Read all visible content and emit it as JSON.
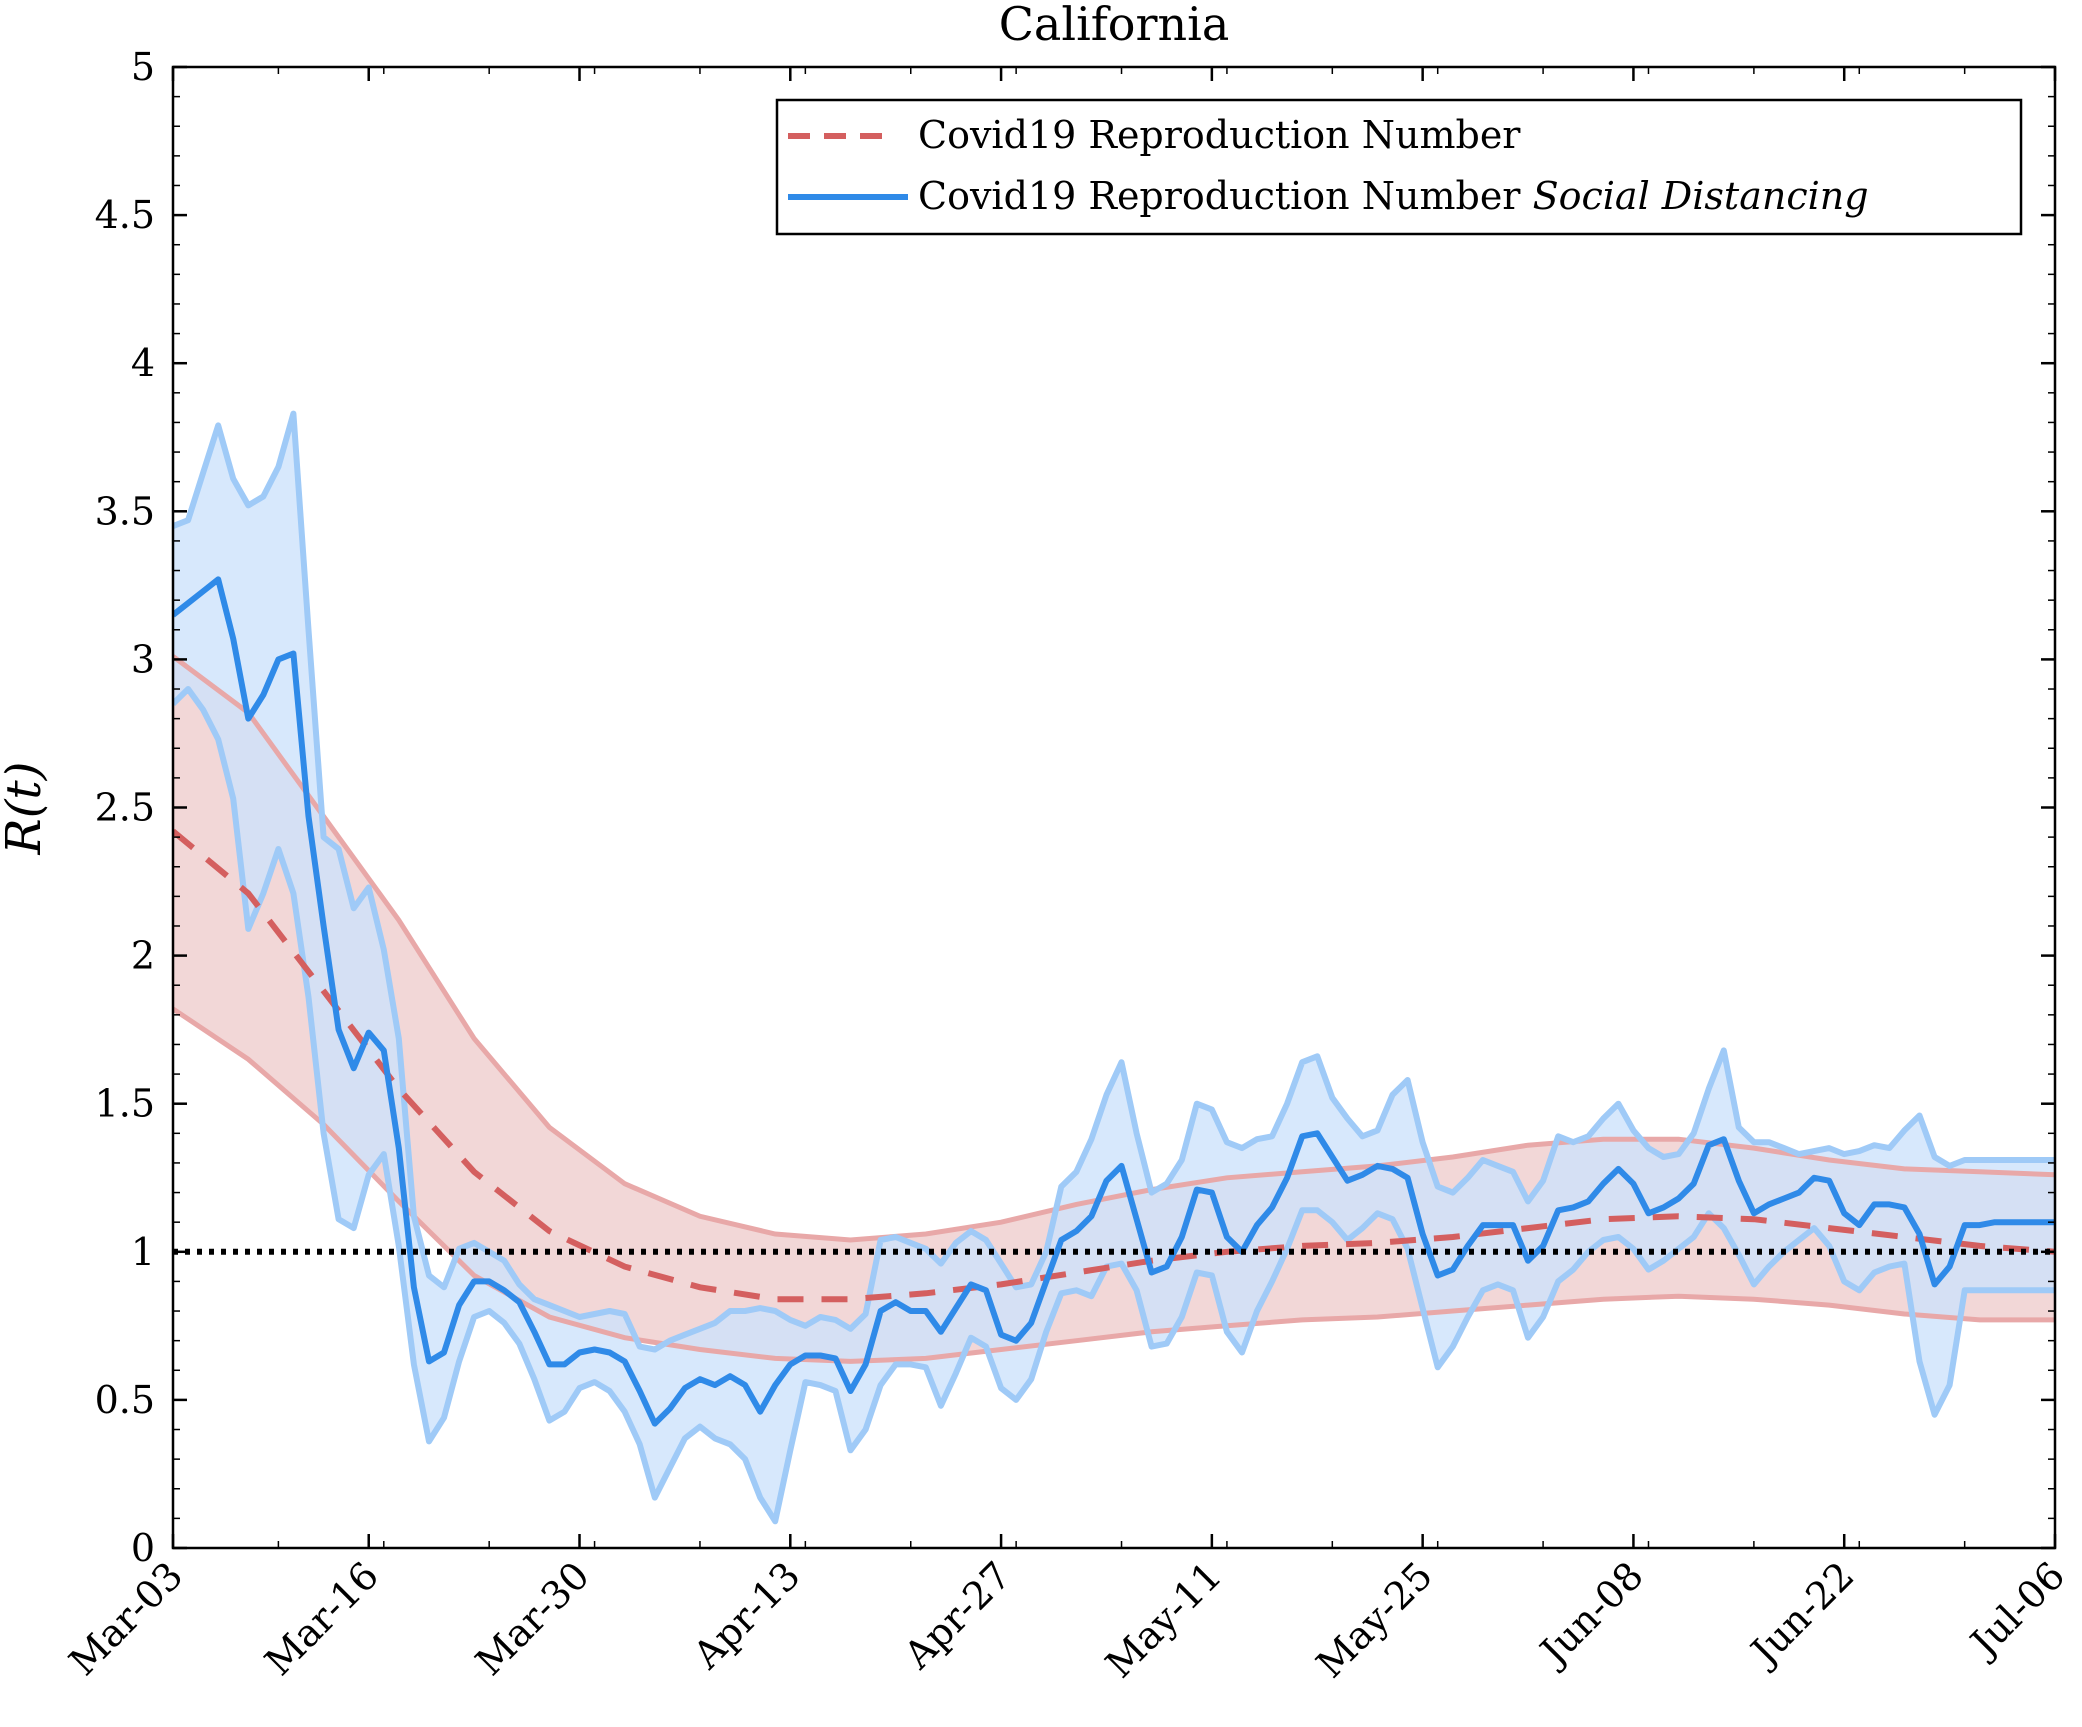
{
  "chart_data": {
    "type": "line",
    "title": "California",
    "xlabel": "",
    "ylabel": "R(t)",
    "ylim": [
      0,
      5
    ],
    "yticks": [
      {
        "v": 0,
        "label": "0"
      },
      {
        "v": 0.5,
        "label": "0.5"
      },
      {
        "v": 1,
        "label": "1"
      },
      {
        "v": 1.5,
        "label": "1.5"
      },
      {
        "v": 2,
        "label": "2"
      },
      {
        "v": 2.5,
        "label": "2.5"
      },
      {
        "v": 3,
        "label": "3"
      },
      {
        "v": 3.5,
        "label": "3.5"
      },
      {
        "v": 4,
        "label": "4"
      },
      {
        "v": 4.5,
        "label": "4.5"
      },
      {
        "v": 5,
        "label": "5"
      }
    ],
    "xlim_days": [
      0,
      125
    ],
    "xticks": [
      {
        "day": 0,
        "label": "Mar-03"
      },
      {
        "day": 13,
        "label": "Mar-16"
      },
      {
        "day": 27,
        "label": "Mar-30"
      },
      {
        "day": 41,
        "label": "Apr-13"
      },
      {
        "day": 55,
        "label": "Apr-27"
      },
      {
        "day": 69,
        "label": "May-11"
      },
      {
        "day": 83,
        "label": "May-25"
      },
      {
        "day": 97,
        "label": "Jun-08"
      },
      {
        "day": 111,
        "label": "Jun-22"
      },
      {
        "day": 125,
        "label": "Jul-06"
      }
    ],
    "reference_line": {
      "y": 1,
      "style": "dotted",
      "color": "#000000"
    },
    "legend": {
      "position": "top-right",
      "entries": [
        {
          "label": "Covid19 Reproduction Number",
          "italic": "",
          "style": "dashed",
          "color": "#d45f5f"
        },
        {
          "label": "Covid19 Reproduction Number ",
          "italic": "Social Distancing",
          "style": "solid",
          "color": "#2f8ae8"
        }
      ]
    },
    "series": [
      {
        "name": "Covid19 Reproduction Number",
        "color": "#d45f5f",
        "band_color": "#eec9c9",
        "days": [
          0,
          5,
          10,
          15,
          20,
          25,
          30,
          35,
          40,
          45,
          50,
          55,
          60,
          65,
          70,
          75,
          80,
          85,
          90,
          95,
          100,
          105,
          110,
          115,
          120,
          125
        ],
        "mean": [
          2.42,
          2.21,
          1.88,
          1.55,
          1.27,
          1.07,
          0.95,
          0.88,
          0.84,
          0.84,
          0.86,
          0.89,
          0.93,
          0.97,
          1.0,
          1.02,
          1.03,
          1.05,
          1.08,
          1.11,
          1.12,
          1.11,
          1.08,
          1.05,
          1.02,
          1.0
        ],
        "upper": [
          3.01,
          2.82,
          2.47,
          2.12,
          1.72,
          1.42,
          1.23,
          1.12,
          1.06,
          1.04,
          1.06,
          1.1,
          1.16,
          1.21,
          1.25,
          1.27,
          1.29,
          1.32,
          1.36,
          1.38,
          1.38,
          1.35,
          1.31,
          1.28,
          1.27,
          1.26
        ],
        "lower": [
          1.82,
          1.65,
          1.43,
          1.17,
          0.92,
          0.78,
          0.71,
          0.67,
          0.64,
          0.63,
          0.64,
          0.67,
          0.7,
          0.73,
          0.75,
          0.77,
          0.78,
          0.8,
          0.82,
          0.84,
          0.85,
          0.84,
          0.82,
          0.79,
          0.77,
          0.77
        ]
      },
      {
        "name": "Covid19 Reproduction Number Social Distancing",
        "color": "#2f8ae8",
        "band_color": "#cde2fb",
        "band_edge_color": "#9fcaf7",
        "days": [
          0,
          1,
          2,
          3,
          4,
          5,
          6,
          7,
          8,
          9,
          10,
          11,
          12,
          13,
          14,
          15,
          16,
          17,
          18,
          19,
          20,
          21,
          22,
          23,
          24,
          25,
          26,
          27,
          28,
          29,
          30,
          31,
          32,
          33,
          34,
          35,
          36,
          37,
          38,
          39,
          40,
          41,
          42,
          43,
          44,
          45,
          46,
          47,
          48,
          49,
          50,
          51,
          52,
          53,
          54,
          55,
          56,
          57,
          58,
          59,
          60,
          61,
          62,
          63,
          64,
          65,
          66,
          67,
          68,
          69,
          70,
          71,
          72,
          73,
          74,
          75,
          76,
          77,
          78,
          79,
          80,
          81,
          82,
          83,
          84,
          85,
          86,
          87,
          88,
          89,
          90,
          91,
          92,
          93,
          94,
          95,
          96,
          97,
          98,
          99,
          100,
          101,
          102,
          103,
          104,
          105,
          106,
          107,
          108,
          109,
          110,
          111,
          112,
          113,
          114,
          115,
          116,
          117,
          118,
          119,
          120,
          121,
          122,
          123,
          124,
          125
        ],
        "mean": [
          3.15,
          3.19,
          3.23,
          3.27,
          3.07,
          2.8,
          2.88,
          3.0,
          3.02,
          2.47,
          2.1,
          1.75,
          1.62,
          1.74,
          1.68,
          1.35,
          0.88,
          0.63,
          0.66,
          0.82,
          0.9,
          0.9,
          0.87,
          0.83,
          0.73,
          0.62,
          0.62,
          0.66,
          0.67,
          0.66,
          0.63,
          0.53,
          0.42,
          0.47,
          0.54,
          0.57,
          0.55,
          0.58,
          0.55,
          0.46,
          0.55,
          0.62,
          0.65,
          0.65,
          0.64,
          0.53,
          0.62,
          0.8,
          0.83,
          0.8,
          0.8,
          0.73,
          0.81,
          0.89,
          0.87,
          0.72,
          0.7,
          0.76,
          0.9,
          1.04,
          1.07,
          1.12,
          1.24,
          1.29,
          1.11,
          0.93,
          0.95,
          1.05,
          1.21,
          1.2,
          1.05,
          1.0,
          1.09,
          1.15,
          1.25,
          1.39,
          1.4,
          1.32,
          1.24,
          1.26,
          1.29,
          1.28,
          1.25,
          1.06,
          0.92,
          0.94,
          1.02,
          1.09,
          1.09,
          1.09,
          0.97,
          1.02,
          1.14,
          1.15,
          1.17,
          1.23,
          1.28,
          1.23,
          1.13,
          1.15,
          1.18,
          1.23,
          1.36,
          1.38,
          1.24,
          1.13,
          1.16,
          1.18,
          1.2,
          1.25,
          1.24,
          1.13,
          1.09,
          1.16,
          1.16,
          1.15,
          1.06,
          0.89,
          0.95,
          1.09,
          1.09,
          1.1,
          1.1,
          1.1,
          1.1,
          1.1
        ],
        "upper": [
          3.45,
          3.47,
          3.63,
          3.79,
          3.61,
          3.52,
          3.55,
          3.65,
          3.83,
          3.1,
          2.4,
          2.36,
          2.16,
          2.23,
          2.02,
          1.72,
          1.12,
          0.92,
          0.88,
          1.01,
          1.03,
          1.0,
          0.97,
          0.89,
          0.84,
          0.82,
          0.8,
          0.78,
          0.79,
          0.8,
          0.79,
          0.68,
          0.67,
          0.7,
          0.72,
          0.74,
          0.76,
          0.8,
          0.8,
          0.81,
          0.8,
          0.77,
          0.75,
          0.78,
          0.77,
          0.74,
          0.79,
          1.04,
          1.05,
          1.03,
          1.01,
          0.96,
          1.03,
          1.07,
          1.04,
          0.96,
          0.88,
          0.89,
          1.0,
          1.22,
          1.27,
          1.38,
          1.53,
          1.64,
          1.4,
          1.2,
          1.23,
          1.31,
          1.5,
          1.48,
          1.37,
          1.35,
          1.38,
          1.39,
          1.5,
          1.64,
          1.66,
          1.52,
          1.45,
          1.39,
          1.41,
          1.53,
          1.58,
          1.37,
          1.22,
          1.2,
          1.25,
          1.31,
          1.29,
          1.27,
          1.17,
          1.24,
          1.39,
          1.37,
          1.39,
          1.45,
          1.5,
          1.41,
          1.35,
          1.32,
          1.33,
          1.4,
          1.55,
          1.68,
          1.42,
          1.37,
          1.37,
          1.35,
          1.33,
          1.34,
          1.35,
          1.33,
          1.34,
          1.36,
          1.35,
          1.41,
          1.46,
          1.32,
          1.29,
          1.31,
          1.31,
          1.31,
          1.31,
          1.31,
          1.31,
          1.31
        ],
        "lower": [
          2.85,
          2.9,
          2.83,
          2.73,
          2.53,
          2.09,
          2.21,
          2.36,
          2.21,
          1.86,
          1.4,
          1.11,
          1.08,
          1.26,
          1.33,
          1.02,
          0.62,
          0.36,
          0.44,
          0.63,
          0.78,
          0.8,
          0.76,
          0.69,
          0.57,
          0.43,
          0.46,
          0.54,
          0.56,
          0.53,
          0.46,
          0.35,
          0.17,
          0.27,
          0.37,
          0.41,
          0.37,
          0.35,
          0.3,
          0.17,
          0.09,
          0.33,
          0.56,
          0.55,
          0.53,
          0.33,
          0.4,
          0.55,
          0.62,
          0.62,
          0.61,
          0.48,
          0.59,
          0.71,
          0.68,
          0.54,
          0.5,
          0.57,
          0.73,
          0.86,
          0.87,
          0.85,
          0.95,
          0.96,
          0.87,
          0.68,
          0.69,
          0.78,
          0.93,
          0.92,
          0.73,
          0.66,
          0.8,
          0.9,
          1.01,
          1.14,
          1.14,
          1.1,
          1.04,
          1.08,
          1.13,
          1.11,
          1.01,
          0.81,
          0.61,
          0.68,
          0.78,
          0.87,
          0.89,
          0.87,
          0.71,
          0.78,
          0.9,
          0.94,
          1.0,
          1.04,
          1.05,
          1.01,
          0.94,
          0.97,
          1.01,
          1.05,
          1.13,
          1.08,
          0.99,
          0.89,
          0.95,
          1.0,
          1.04,
          1.08,
          1.02,
          0.9,
          0.87,
          0.93,
          0.95,
          0.96,
          0.63,
          0.45,
          0.55,
          0.87,
          0.87,
          0.87,
          0.87,
          0.87,
          0.87,
          0.87
        ]
      }
    ]
  }
}
